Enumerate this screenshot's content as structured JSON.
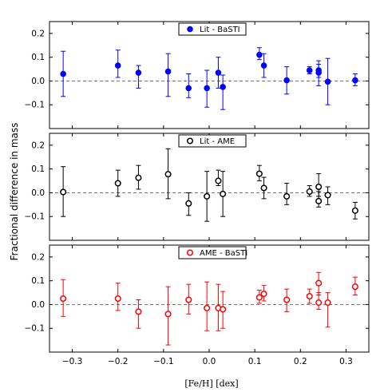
{
  "figure": {
    "ylabel": "Fractional difference in mass",
    "xlabel": "[Fe/H]  [dex]"
  },
  "chart_data": [
    {
      "type": "scatter",
      "series": [
        {
          "name": "Lit - BaSTI",
          "color": "#0000ff",
          "marker": "filled-circle",
          "x": [
            -0.32,
            -0.2,
            -0.155,
            -0.09,
            -0.045,
            -0.005,
            0.02,
            0.03,
            0.11,
            0.12,
            0.17,
            0.22,
            0.24,
            0.24,
            0.26,
            0.32
          ],
          "y": [
            0.03,
            0.065,
            0.035,
            0.04,
            -0.03,
            -0.03,
            0.035,
            -0.025,
            0.11,
            0.065,
            0.003,
            0.045,
            0.045,
            0.035,
            -0.003,
            0.003
          ],
          "ylow": [
            -0.065,
            0.015,
            -0.03,
            -0.065,
            -0.07,
            -0.11,
            -0.03,
            -0.12,
            0.09,
            0.015,
            -0.055,
            0.03,
            0.015,
            -0.02,
            -0.1,
            -0.02
          ],
          "yhigh": [
            0.125,
            0.13,
            0.065,
            0.115,
            0.03,
            0.045,
            0.1,
            0.025,
            0.14,
            0.115,
            0.06,
            0.06,
            0.07,
            0.085,
            0.095,
            0.03
          ]
        }
      ],
      "legend_position": "top-center",
      "ylim": [
        -0.2,
        0.25
      ],
      "yticks": [
        "0.2",
        "0.1",
        "0.0",
        "−0.1"
      ],
      "xlim": [
        -0.35,
        0.35
      ],
      "xticks": [],
      "reference_line_y": 0
    },
    {
      "type": "scatter",
      "series": [
        {
          "name": "Lit - AME",
          "color": "#000000",
          "marker": "open-circle",
          "x": [
            -0.32,
            -0.2,
            -0.155,
            -0.09,
            -0.045,
            -0.005,
            0.02,
            0.03,
            0.11,
            0.12,
            0.17,
            0.22,
            0.24,
            0.24,
            0.26,
            0.32
          ],
          "y": [
            0.003,
            0.04,
            0.063,
            0.078,
            -0.045,
            -0.015,
            0.05,
            -0.005,
            0.08,
            0.02,
            -0.015,
            0.005,
            0.025,
            -0.035,
            -0.01,
            -0.075
          ],
          "ylow": [
            -0.1,
            -0.015,
            0.015,
            -0.025,
            -0.095,
            -0.12,
            0.03,
            -0.1,
            0.05,
            -0.025,
            -0.05,
            -0.015,
            -0.015,
            -0.06,
            -0.05,
            -0.11
          ],
          "yhigh": [
            0.11,
            0.095,
            0.115,
            0.185,
            0.0,
            0.09,
            0.095,
            0.09,
            0.115,
            0.065,
            0.04,
            0.03,
            0.08,
            0.005,
            0.025,
            -0.04
          ]
        }
      ],
      "legend_position": "top-center",
      "ylim": [
        -0.2,
        0.25
      ],
      "yticks": [
        "0.2",
        "0.1",
        "0.0",
        "−0.1"
      ],
      "xlim": [
        -0.35,
        0.35
      ],
      "xticks": [],
      "reference_line_y": 0
    },
    {
      "type": "scatter",
      "series": [
        {
          "name": "AME - BaSTI",
          "color": "#ff0000",
          "marker": "open-circle",
          "x": [
            -0.32,
            -0.2,
            -0.155,
            -0.09,
            -0.045,
            -0.005,
            0.02,
            0.03,
            0.11,
            0.12,
            0.17,
            0.22,
            0.24,
            0.24,
            0.26,
            0.32
          ],
          "y": [
            0.025,
            0.025,
            -0.03,
            -0.04,
            0.02,
            -0.015,
            -0.015,
            -0.02,
            0.03,
            0.045,
            0.02,
            0.035,
            0.09,
            0.008,
            0.008,
            0.075
          ],
          "ylow": [
            -0.05,
            -0.025,
            -0.1,
            -0.17,
            -0.04,
            -0.11,
            -0.11,
            -0.1,
            0.005,
            0.015,
            -0.03,
            0.005,
            0.04,
            -0.02,
            -0.095,
            0.04
          ],
          "yhigh": [
            0.105,
            0.09,
            0.02,
            0.075,
            0.085,
            0.095,
            0.085,
            0.055,
            0.06,
            0.08,
            0.065,
            0.065,
            0.135,
            0.05,
            0.05,
            0.115
          ]
        }
      ],
      "legend_position": "top-center",
      "ylim": [
        -0.2,
        0.25
      ],
      "yticks": [
        "0.2",
        "0.1",
        "0.0",
        "−0.1"
      ],
      "xlim": [
        -0.35,
        0.35
      ],
      "xticks": [
        "−0.3",
        "−0.2",
        "−0.1",
        "0.0",
        "0.1",
        "0.2",
        "0.3"
      ],
      "xtick_values": [
        -0.3,
        -0.2,
        -0.1,
        0.0,
        0.1,
        0.2,
        0.3
      ],
      "reference_line_y": 0
    }
  ]
}
